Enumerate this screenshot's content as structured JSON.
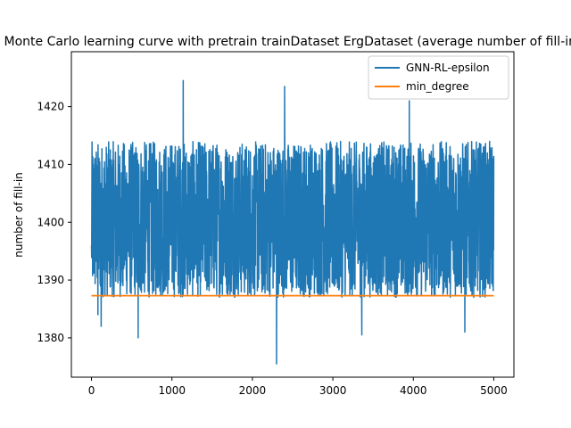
{
  "chart_data": {
    "type": "line",
    "title": "Monte Carlo learning curve with pretrain trainDataset ErgDataset (average number of fill-in)",
    "xlabel": "",
    "ylabel": "number of fill-in",
    "xlim": [
      -250,
      5250
    ],
    "ylim": [
      1373.2,
      1429.5
    ],
    "xticks": [
      0,
      1000,
      2000,
      3000,
      4000,
      5000
    ],
    "yticks": [
      1380,
      1390,
      1400,
      1410,
      1420
    ],
    "grid": false,
    "legend_position": "top-right",
    "series": [
      {
        "name": "GNN-RL-epsilon",
        "color": "#1f77b4",
        "x": [
          0,
          5000
        ],
        "center": 1400,
        "typical_range": [
          1387,
          1414
        ],
        "min": 1375.5,
        "max": 1424.5,
        "notable_points": [
          {
            "x": 80,
            "y": 1384
          },
          {
            "x": 120,
            "y": 1382
          },
          {
            "x": 580,
            "y": 1380
          },
          {
            "x": 1140,
            "y": 1424.5
          },
          {
            "x": 2300,
            "y": 1375.5
          },
          {
            "x": 2400,
            "y": 1423.5
          },
          {
            "x": 3360,
            "y": 1380.5
          },
          {
            "x": 3950,
            "y": 1421
          },
          {
            "x": 4640,
            "y": 1381
          }
        ]
      },
      {
        "name": "min_degree",
        "color": "#ff7f0e",
        "x": [
          0,
          5000
        ],
        "y": [
          1387.3,
          1387.3
        ]
      }
    ]
  }
}
